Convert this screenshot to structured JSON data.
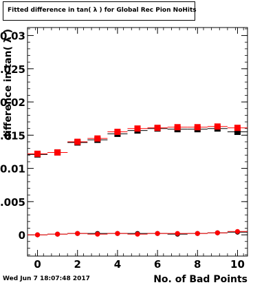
{
  "title": "Fitted difference in tan( λ ) for Global Rec Pion NoHits",
  "footer": {
    "timestamp": "Wed Jun  7 18:07:48 2017"
  },
  "chart_data": {
    "type": "scatter",
    "title": "Fitted difference in tan( λ ) for Global Rec Pion NoHits",
    "xlabel": "No. of Bad Points",
    "ylabel": "difference in tan( λ )",
    "xlim": [
      -0.5,
      10.5
    ],
    "ylim": [
      -0.0032,
      0.0312
    ],
    "x_ticks": [
      0,
      2,
      4,
      6,
      8,
      10
    ],
    "x_tick_labels": [
      "0",
      "2",
      "4",
      "6",
      "8",
      "10"
    ],
    "y_ticks": [
      0,
      0.005,
      0.01,
      0.015,
      0.02,
      0.025,
      0.03
    ],
    "y_tick_labels": [
      "0",
      "0.005",
      "0.01",
      "0.015",
      "0.02",
      "0.025",
      "0.03"
    ],
    "grid": true,
    "x": [
      0,
      1,
      2,
      3,
      4,
      5,
      6,
      7,
      8,
      9,
      10
    ],
    "series": [
      {
        "marker": "square",
        "color": "#000000",
        "values": [
          0.0121,
          0.0124,
          0.0139,
          0.0143,
          0.0152,
          0.0157,
          0.016,
          0.0159,
          0.0159,
          0.016,
          0.0155
        ]
      },
      {
        "marker": "square",
        "color": "#ff0000",
        "values": [
          0.0122,
          0.0124,
          0.014,
          0.0145,
          0.0155,
          0.016,
          0.0161,
          0.0162,
          0.0162,
          0.0163,
          0.0161
        ]
      },
      {
        "marker": "circle",
        "color": "#000000",
        "values": [
          0.0,
          0.0001,
          0.0002,
          0.0002,
          0.0002,
          0.0002,
          0.0002,
          0.0001,
          0.0002,
          0.0003,
          0.0004
        ]
      },
      {
        "marker": "circle",
        "color": "#ff0000",
        "values": [
          0.0,
          0.0001,
          0.0002,
          0.0001,
          0.0002,
          0.0001,
          0.0002,
          0.0002,
          0.0002,
          0.0003,
          0.0005
        ]
      }
    ]
  }
}
